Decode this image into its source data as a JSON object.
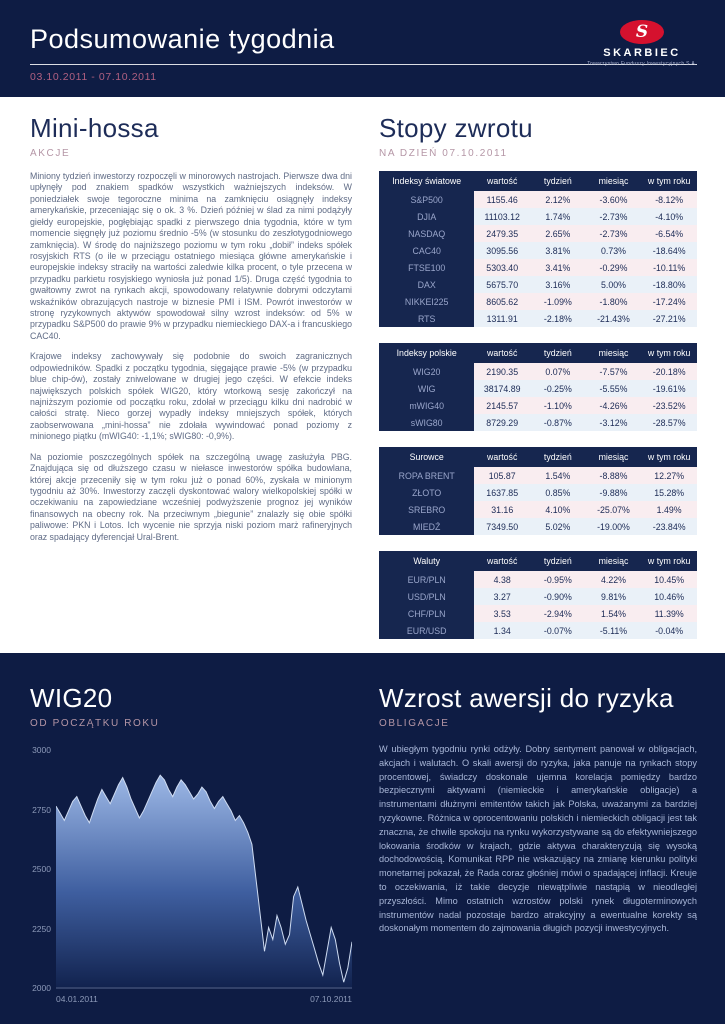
{
  "header": {
    "title": "Podsumowanie tygodnia",
    "date_range": "03.10.2011 - 07.10.2011",
    "logo": {
      "name": "SKARBIEC",
      "mark": "S",
      "tagline": "Towarzystwo Funduszy Inwestycyjnych S.A."
    }
  },
  "left_article": {
    "title": "Mini-hossa",
    "subtitle": "AKCJE",
    "paragraphs": [
      "Miniony tydzień inwestorzy rozpoczęli w minorowych nastrojach. Pierwsze dwa dni upłynęły pod znakiem spadków wszystkich ważniejszych indeksów. W poniedziałek swoje tegoroczne minima na zamknięciu osiągnęły indeksy amerykańskie, przeceniając się o ok. 3 %. Dzień później w ślad za nimi podążyły giełdy europejskie, pogłębiając spadki z pierwszego dnia tygodnia, które w tym momencie sięgnęły już poziomu średnio -5% (w stosunku do zeszłotygodniowego zamknięcia). W środę do najniższego poziomu w tym roku „dobił” indeks spółek rosyjskich RTS (o ile w przeciągu ostatniego miesiąca główne amerykańskie i europejskie indeksy straciły na wartości zaledwie kilka procent, o tyle przecena w przypadku parkietu rosyjskiego wyniosła już ponad 1/5). Druga część tygodnia to gwałtowny zwrot na rynkach akcji, spowodowany relatywnie dobrymi odczytami wskaźników obrazujących nastroje w biznesie PMI i ISM. Powrót inwestorów w stronę ryzykownych aktywów spowodował silny wzrost indeksów: od 5% w przypadku S&P500 do prawie 9% w przypadku niemieckiego DAX-a i francuskiego CAC40.",
      "Krajowe indeksy zachowywały się podobnie do swoich zagranicznych odpowiedników. Spadki z początku tygodnia, sięgające prawie -5% (w przypadku blue chip-ów), zostały zniwelowane w drugiej jego części. W efekcie indeks największych polskich spółek WIG20, który wtorkową sesję zakończył na najniższym poziomie od początku roku, zdołał w przeciągu kilku dni nadrobić w całości stratę. Nieco gorzej wypadły indeksy mniejszych spółek, których zaobserwowana „mini-hossa” nie zdołała wywindować ponad poziomy z minionego piątku (mWIG40: -1,1%; sWIG80: -0,9%).",
      "Na poziomie poszczególnych spółek na szczególną uwagę zasłużyła PBG. Znajdująca się od dłuższego czasu w niełasce inwestorów spółka budowlana, której akcje przeceniły się w tym roku już o ponad 60%, zyskała w minionym tygodniu aż 30%. Inwestorzy zaczęli dyskontować walory wielkopolskiej spółki w oczekiwaniu na zapowiedziane wcześniej podwyższenie prognoz jej wyników finansowych na obecny rok. Na przeciwnym „biegunie” znalazły się obie spółki paliwowe: PKN i Lotos. Ich wycenie nie sprzyja niski poziom marż rafineryjnych oraz spadający dyferencjał Ural-Brent."
    ]
  },
  "returns": {
    "title": "Stopy zwrotu",
    "subtitle": "NA DZIEŃ 07.10.2011",
    "columns": [
      "wartość",
      "tydzień",
      "miesiąc",
      "w tym roku"
    ],
    "tables": [
      {
        "name": "Indeksy światowe",
        "rows": [
          [
            "S&P500",
            "1155.46",
            "2.12%",
            "-3.60%",
            "-8.12%"
          ],
          [
            "DJIA",
            "11103.12",
            "1.74%",
            "-2.73%",
            "-4.10%"
          ],
          [
            "NASDAQ",
            "2479.35",
            "2.65%",
            "-2.73%",
            "-6.54%"
          ],
          [
            "CAC40",
            "3095.56",
            "3.81%",
            "0.73%",
            "-18.64%"
          ],
          [
            "FTSE100",
            "5303.40",
            "3.41%",
            "-0.29%",
            "-10.11%"
          ],
          [
            "DAX",
            "5675.70",
            "3.16%",
            "5.00%",
            "-18.80%"
          ],
          [
            "NIKKEI225",
            "8605.62",
            "-1.09%",
            "-1.80%",
            "-17.24%"
          ],
          [
            "RTS",
            "1311.91",
            "-2.18%",
            "-21.43%",
            "-27.21%"
          ]
        ]
      },
      {
        "name": "Indeksy polskie",
        "rows": [
          [
            "WIG20",
            "2190.35",
            "0.07%",
            "-7.57%",
            "-20.18%"
          ],
          [
            "WIG",
            "38174.89",
            "-0.25%",
            "-5.55%",
            "-19.61%"
          ],
          [
            "mWIG40",
            "2145.57",
            "-1.10%",
            "-4.26%",
            "-23.52%"
          ],
          [
            "sWIG80",
            "8729.29",
            "-0.87%",
            "-3.12%",
            "-28.57%"
          ]
        ]
      },
      {
        "name": "Surowce",
        "rows": [
          [
            "ROPA BRENT",
            "105.87",
            "1.54%",
            "-8.88%",
            "12.27%"
          ],
          [
            "ZŁOTO",
            "1637.85",
            "0.85%",
            "-9.88%",
            "15.28%"
          ],
          [
            "SREBRO",
            "31.16",
            "4.10%",
            "-25.07%",
            "1.49%"
          ],
          [
            "MIEDŹ",
            "7349.50",
            "5.02%",
            "-19.00%",
            "-23.84%"
          ]
        ]
      },
      {
        "name": "Waluty",
        "rows": [
          [
            "EUR/PLN",
            "4.38",
            "-0.95%",
            "4.22%",
            "10.45%"
          ],
          [
            "USD/PLN",
            "3.27",
            "-0.90%",
            "9.81%",
            "10.46%"
          ],
          [
            "CHF/PLN",
            "3.53",
            "-2.94%",
            "1.54%",
            "11.39%"
          ],
          [
            "EUR/USD",
            "1.34",
            "-0.07%",
            "-5.11%",
            "-0.04%"
          ]
        ]
      }
    ]
  },
  "bottom_left": {
    "title": "WIG20",
    "subtitle": "OD POCZĄTKU ROKU"
  },
  "bottom_right": {
    "title": "Wzrost awersji do ryzyka",
    "subtitle": "OBLIGACJE",
    "paragraph": "W ubiegłym tygodniu rynki odżyły. Dobry sentyment panował w obligacjach, akcjach i walutach. O skali awersji do ryzyka, jaka panuje na rynkach stopy procentowej, świadczy doskonale ujemna korelacja pomiędzy bardzo bezpiecznymi aktywami (niemieckie i amerykańskie obligacje) a instrumentami dłużnymi emitentów takich jak Polska, uważanymi za bardziej ryzykowne. Różnica w oprocentowaniu polskich i niemieckich obligacji jest tak znaczna, że chwile spokoju na rynku wykorzystywane są do efektywniejszego lokowania środków w krajach, gdzie aktywa charakteryzują się wysoką dochodowością. Komunikat RPP nie wskazujący na zmianę kierunku polityki monetarnej pokazał, że Rada coraz głośniej mówi o spadającej inflacji. Kreuje to oczekiwania, iż takie decyzje niewątpliwie nastąpią w nieodległej przyszłości. Mimo ostatnich wzrostów polski rynek długoterminowych instrumentów nadal pozostaje bardzo atrakcyjny a ewentualne korekty są doskonałym momentem do zajmowania długich pozycji inwestycyjnych."
  },
  "chart_data": {
    "type": "area",
    "title": "WIG20 od początku roku",
    "xlabel": "",
    "ylabel": "",
    "ylim": [
      2000,
      3000
    ],
    "yticks": [
      3000,
      2750,
      2500,
      2250,
      2000
    ],
    "x_labels": [
      "04.01.2011",
      "07.10.2011"
    ],
    "grid": false,
    "values": [
      2760,
      2730,
      2700,
      2740,
      2780,
      2800,
      2760,
      2720,
      2690,
      2740,
      2790,
      2830,
      2800,
      2770,
      2810,
      2850,
      2880,
      2840,
      2790,
      2750,
      2710,
      2740,
      2780,
      2820,
      2860,
      2890,
      2870,
      2830,
      2800,
      2840,
      2870,
      2850,
      2820,
      2790,
      2810,
      2840,
      2820,
      2780,
      2750,
      2780,
      2800,
      2770,
      2740,
      2700,
      2720,
      2690,
      2650,
      2600,
      2450,
      2300,
      2150,
      2250,
      2200,
      2300,
      2250,
      2180,
      2220,
      2380,
      2420,
      2350,
      2280,
      2220,
      2160,
      2100,
      2050,
      2150,
      2250,
      2200,
      2100,
      2020,
      2080,
      2190
    ]
  },
  "colors": {
    "background_navy": "#0e1c44",
    "table_navy": "#16264f",
    "accent_red": "#d5112e",
    "accent_pink": "#b06080",
    "subtitle_pink": "#b596a6",
    "row_pink": "#f9edf0",
    "row_blue": "#eaf1f8"
  }
}
